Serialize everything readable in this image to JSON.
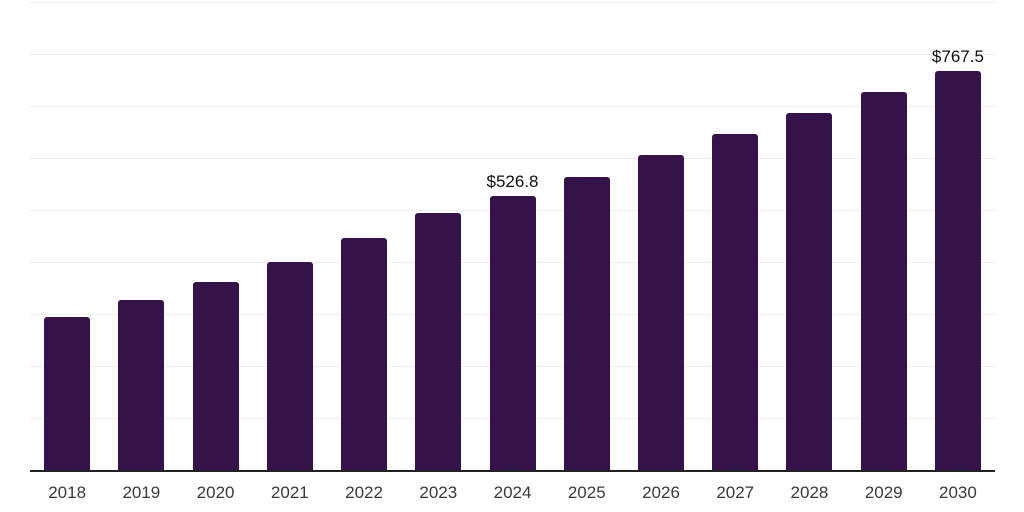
{
  "chart_data": {
    "type": "bar",
    "categories": [
      "2018",
      "2019",
      "2020",
      "2021",
      "2022",
      "2023",
      "2024",
      "2025",
      "2026",
      "2027",
      "2028",
      "2029",
      "2030"
    ],
    "values": [
      295,
      327,
      362,
      401,
      447,
      495,
      526.8,
      564,
      606,
      646,
      687,
      727,
      767.5
    ],
    "data_labels": {
      "2024": "$526.8",
      "2030": "$767.5"
    },
    "title": "",
    "xlabel": "",
    "ylabel": "",
    "ylim": [
      0,
      900
    ],
    "grid": "horizontal",
    "gridline_step": 100,
    "legend_position": "none",
    "style": {
      "bar_color": "#35124A",
      "grid_color": "#EDEDED",
      "axis_line_color": "#222222",
      "tick_label_color": "#3A3A3A",
      "value_label_color": "#111111",
      "background": "#FFFFFF"
    }
  }
}
